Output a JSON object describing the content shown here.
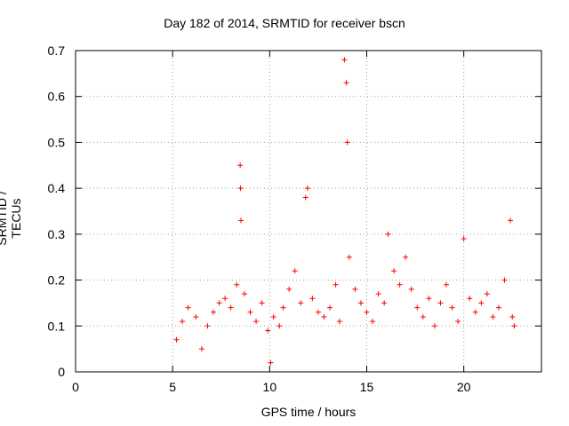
{
  "chart_data": {
    "type": "scatter",
    "title": "Day 182 of 2014, SRMTID for receiver bscn",
    "xlabel": "GPS time / hours",
    "ylabel": "SRMTID / TECUs",
    "xlim": [
      0,
      24
    ],
    "ylim": [
      0,
      0.7
    ],
    "xticks": [
      0,
      5,
      10,
      15,
      20
    ],
    "yticks": [
      0,
      0.1,
      0.2,
      0.3,
      0.4,
      0.5,
      0.6,
      0.7
    ],
    "grid": true,
    "marker": "+",
    "color": "#ff0000",
    "series": [
      {
        "name": "SRMTID",
        "x": [
          5.2,
          5.5,
          5.8,
          6.2,
          6.5,
          6.8,
          7.1,
          7.4,
          7.7,
          8.0,
          8.3,
          8.48,
          8.5,
          8.52,
          8.7,
          9.0,
          9.3,
          9.6,
          9.9,
          10.05,
          10.2,
          10.5,
          10.7,
          11.0,
          11.3,
          11.6,
          11.85,
          11.95,
          12.2,
          12.5,
          12.8,
          13.1,
          13.4,
          13.6,
          13.85,
          13.95,
          14.0,
          14.1,
          14.4,
          14.7,
          15.0,
          15.3,
          15.6,
          15.9,
          16.1,
          16.4,
          16.7,
          17.0,
          17.3,
          17.6,
          17.9,
          18.2,
          18.5,
          18.8,
          19.1,
          19.4,
          19.7,
          20.0,
          20.3,
          20.6,
          20.9,
          21.2,
          21.5,
          21.8,
          22.1,
          22.4,
          22.5,
          22.6
        ],
        "y": [
          0.07,
          0.11,
          0.14,
          0.12,
          0.05,
          0.1,
          0.13,
          0.15,
          0.16,
          0.14,
          0.19,
          0.45,
          0.4,
          0.33,
          0.17,
          0.13,
          0.11,
          0.15,
          0.09,
          0.02,
          0.12,
          0.1,
          0.14,
          0.18,
          0.22,
          0.15,
          0.38,
          0.4,
          0.16,
          0.13,
          0.12,
          0.14,
          0.19,
          0.11,
          0.68,
          0.63,
          0.5,
          0.25,
          0.18,
          0.15,
          0.13,
          0.11,
          0.17,
          0.15,
          0.3,
          0.22,
          0.19,
          0.25,
          0.18,
          0.14,
          0.12,
          0.16,
          0.1,
          0.15,
          0.19,
          0.14,
          0.11,
          0.29,
          0.16,
          0.13,
          0.15,
          0.17,
          0.12,
          0.14,
          0.2,
          0.33,
          0.12,
          0.1
        ]
      }
    ]
  }
}
